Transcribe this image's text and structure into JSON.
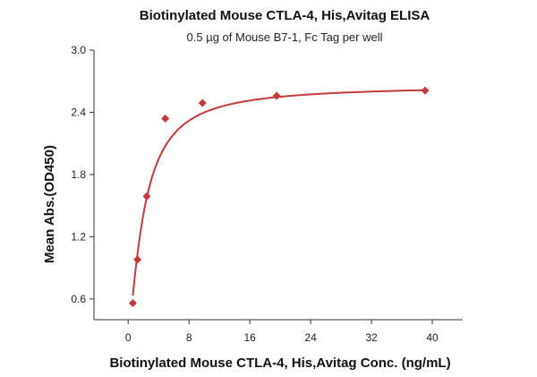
{
  "chart_data": {
    "type": "scatter",
    "title": "Biotinylated Mouse CTLA-4, His,Avitag ELISA",
    "subtitle": "0.5 µg of Mouse B7-1, Fc Tag per well",
    "xlabel": "Biotinylated Mouse CTLA-4, His,Avitag Conc. (ng/mL)",
    "ylabel": "Mean Abs.(OD450)",
    "xlim": [
      -4.5,
      44
    ],
    "ylim": [
      0.4,
      3.0
    ],
    "x_ticks": [
      0,
      8,
      16,
      24,
      32,
      40
    ],
    "y_ticks": [
      0.6,
      1.2,
      1.8,
      2.4,
      3.0
    ],
    "y_tick_labels": [
      "0.6",
      "1.2",
      "1.8",
      "2.4",
      "3.0"
    ],
    "grid": false,
    "marker": "diamond",
    "series": [
      {
        "x": [
          0.61,
          1.22,
          2.44,
          4.88,
          9.77,
          19.53,
          39.06
        ],
        "y": [
          0.56,
          0.98,
          1.59,
          2.34,
          2.49,
          2.56,
          2.61
        ],
        "fit": "4PL"
      }
    ],
    "colors": {
      "series": "#c4393b",
      "axis": "#333333"
    }
  }
}
